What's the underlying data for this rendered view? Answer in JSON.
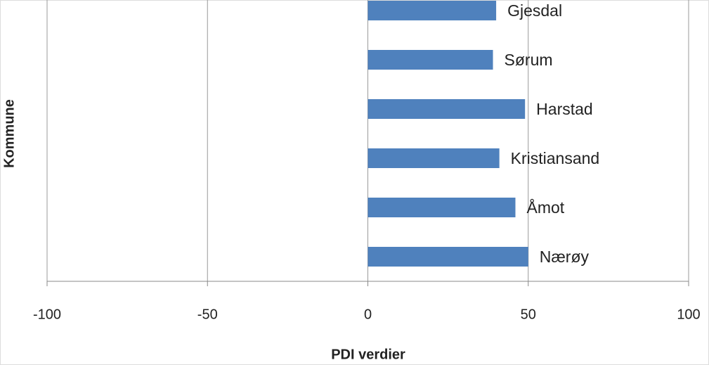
{
  "chart_data": {
    "type": "barh",
    "xlabel": "PDI verdier",
    "ylabel": "Kommune",
    "categories": [
      "Gjesdal",
      "Sørum",
      "Harstad",
      "Kristiansand",
      "Åmot",
      "Nærøy"
    ],
    "values": [
      40,
      39,
      49,
      41,
      46,
      50
    ],
    "color": "#4f81bd",
    "xlim": [
      -100,
      100
    ],
    "xticks": [
      -100,
      -50,
      0,
      50,
      100
    ],
    "grid": true
  }
}
